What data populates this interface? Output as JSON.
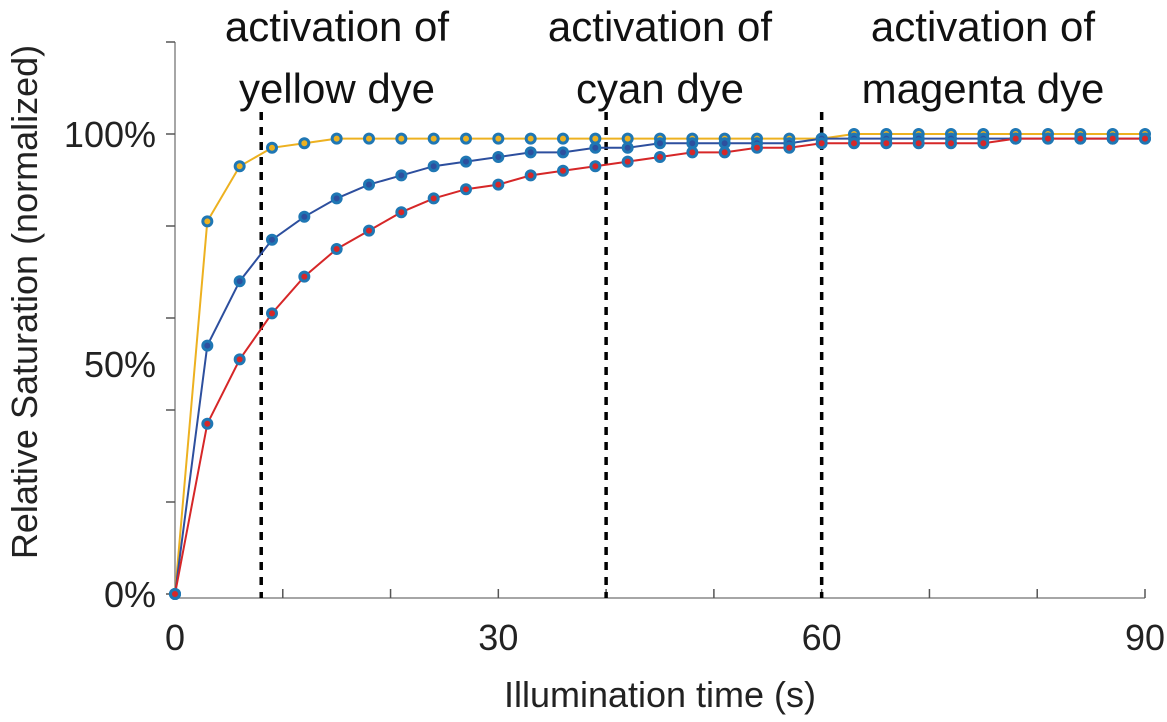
{
  "chart_data": {
    "type": "line",
    "xlabel": "Illumination time (s)",
    "ylabel": "Relative Saturation (normalized)",
    "xlim": [
      0,
      90
    ],
    "ylim": [
      0,
      1.2
    ],
    "x_ticks": [
      {
        "value": 0,
        "label": "0"
      },
      {
        "value": 30,
        "label": "30"
      },
      {
        "value": 60,
        "label": "60"
      },
      {
        "value": 90,
        "label": "90"
      }
    ],
    "y_ticks": [
      {
        "value": 0,
        "label": "0%"
      },
      {
        "value": 0.5,
        "label": "50%"
      },
      {
        "value": 1.0,
        "label": "100%"
      }
    ],
    "x": [
      0,
      3,
      6,
      9,
      12,
      15,
      18,
      21,
      24,
      27,
      30,
      33,
      36,
      39,
      42,
      45,
      48,
      51,
      54,
      57,
      60,
      63,
      66,
      69,
      72,
      75,
      78,
      81,
      84,
      87,
      90
    ],
    "series": [
      {
        "color": "#edb120",
        "values": [
          0.0,
          0.81,
          0.93,
          0.97,
          0.98,
          0.99,
          0.99,
          0.99,
          0.99,
          0.99,
          0.99,
          0.99,
          0.99,
          0.99,
          0.99,
          0.99,
          0.99,
          0.99,
          0.99,
          0.99,
          0.99,
          1.0,
          1.0,
          1.0,
          1.0,
          1.0,
          1.0,
          1.0,
          1.0,
          1.0,
          1.0
        ]
      },
      {
        "color": "#2d4f9e",
        "values": [
          0.0,
          0.54,
          0.68,
          0.77,
          0.82,
          0.86,
          0.89,
          0.91,
          0.93,
          0.94,
          0.95,
          0.96,
          0.96,
          0.97,
          0.97,
          0.98,
          0.98,
          0.98,
          0.98,
          0.98,
          0.99,
          0.99,
          0.99,
          0.99,
          0.99,
          0.99,
          0.99,
          0.99,
          0.99,
          0.99,
          0.99
        ]
      },
      {
        "color": "#d62728",
        "values": [
          0.0,
          0.37,
          0.51,
          0.61,
          0.69,
          0.75,
          0.79,
          0.83,
          0.86,
          0.88,
          0.89,
          0.91,
          0.92,
          0.93,
          0.94,
          0.95,
          0.96,
          0.96,
          0.97,
          0.97,
          0.98,
          0.98,
          0.98,
          0.98,
          0.98,
          0.98,
          0.99,
          0.99,
          0.99,
          0.99,
          0.99
        ]
      }
    ],
    "marker_color": "#1f77b4",
    "annotations": [
      {
        "x": 8,
        "line1": "activation of",
        "line2": "yellow dye"
      },
      {
        "x": 40,
        "line1": "activation of",
        "line2": "cyan dye"
      },
      {
        "x": 60,
        "line1": "activation of",
        "line2": "magenta dye"
      }
    ],
    "grid": false,
    "legend": "none"
  }
}
